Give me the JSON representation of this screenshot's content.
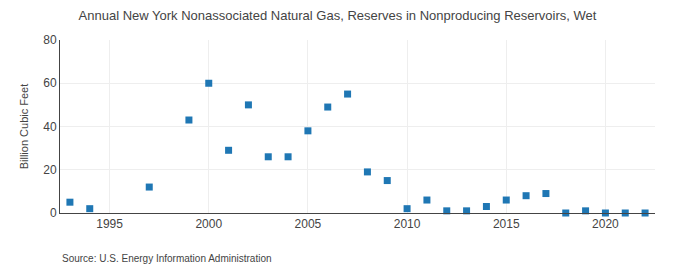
{
  "chart_data": {
    "type": "scatter",
    "title": "Annual New York Nonassociated Natural Gas, Reserves in Nonproducing Reservoirs, Wet",
    "ylabel": "Billion Cubic Feet",
    "annotations": [
      "Source: U.S. Energy Information Administration"
    ],
    "marker": "square",
    "x": [
      1993,
      1994,
      1997,
      1999,
      2000,
      2001,
      2002,
      2003,
      2004,
      2005,
      2006,
      2007,
      2008,
      2009,
      2010,
      2011,
      2012,
      2013,
      2014,
      2015,
      2016,
      2017,
      2018,
      2019,
      2020,
      2021,
      2022
    ],
    "values": [
      5,
      2,
      12,
      43,
      60,
      29,
      50,
      26,
      26,
      38,
      49,
      55,
      19,
      15,
      2,
      6,
      1,
      1,
      3,
      6,
      8,
      9,
      0,
      1,
      0,
      0,
      0
    ],
    "xlim": [
      1992.5,
      2022.5
    ],
    "xticks": [
      1995,
      2000,
      2005,
      2010,
      2015,
      2020
    ],
    "ylim": [
      0,
      80
    ],
    "yticks": [
      0,
      20,
      40,
      60,
      80
    ],
    "grid": true
  }
}
